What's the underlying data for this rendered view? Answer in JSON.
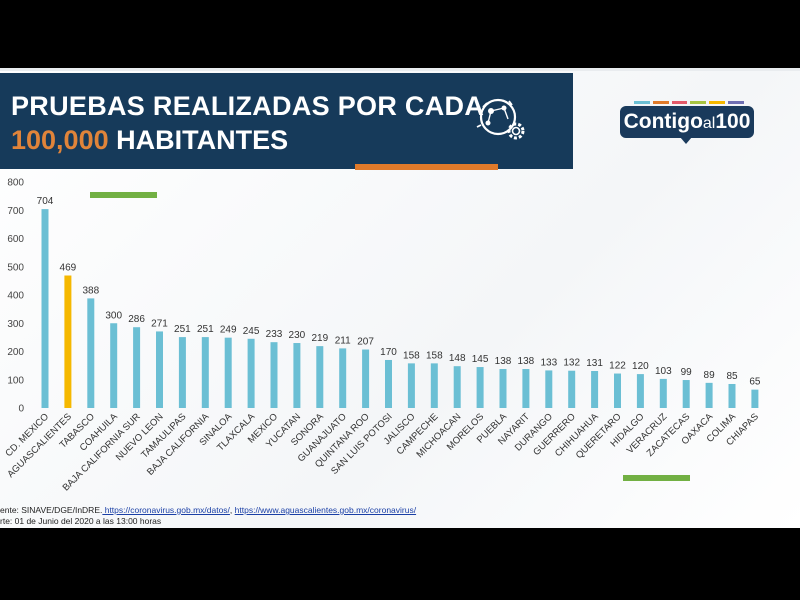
{
  "header": {
    "title_bold_1": "PRUEBAS",
    "title_rest_1": " REALIZADAS POR CADA",
    "title_accent_2": "100,000",
    "title_rest_2": " HABITANTES",
    "logo_part1": "Contigo",
    "logo_part2": "al",
    "logo_part3": "100"
  },
  "colors": {
    "header_bg": "#163a5a",
    "bar_default": "#6bbfd4",
    "bar_highlight": "#f5b800",
    "accent_orange": "#e07a2a",
    "accent_green": "#72b043",
    "logo_stripes": [
      "#6bbfd4",
      "#e07a2a",
      "#e45a6a",
      "#a8c441",
      "#f5b800",
      "#6f6fb3"
    ]
  },
  "icons": [
    "virus-network-icon",
    "gear-icon"
  ],
  "chart_data": {
    "type": "bar",
    "categories": [
      "CD. MEXICO",
      "AGUASCALIENTES",
      "TABASCO",
      "COAHUILA",
      "BAJA CALIFORNIA SUR",
      "NUEVO LEON",
      "TAMAULIPAS",
      "BAJA CALIFORNIA",
      "SINALOA",
      "TLAXCALA",
      "MEXICO",
      "YUCATAN",
      "SONORA",
      "GUANAJUATO",
      "QUINTANA ROO",
      "SAN LUIS POTOSI",
      "JALISCO",
      "CAMPECHE",
      "MICHOACAN",
      "MORELOS",
      "PUEBLA",
      "NAYARIT",
      "DURANGO",
      "GUERRERO",
      "CHIHUAHUA",
      "QUERETARO",
      "HIDALGO",
      "VERACRUZ",
      "ZACATECAS",
      "OAXACA",
      "COLIMA",
      "CHIAPAS"
    ],
    "values": [
      704,
      469,
      388,
      300,
      286,
      271,
      251,
      251,
      249,
      245,
      233,
      230,
      219,
      211,
      207,
      170,
      158,
      158,
      148,
      145,
      138,
      138,
      133,
      132,
      131,
      122,
      120,
      103,
      99,
      89,
      85,
      65
    ],
    "highlight": "AGUASCALIENTES",
    "ylim": [
      0,
      800
    ],
    "yticks": [
      0,
      100,
      200,
      300,
      400,
      500,
      600,
      700,
      800
    ],
    "grid": false
  },
  "footer": {
    "line1_prefix": "ente: SINAVE/DGE/InDRE.",
    "link1": " https://coronavirus.gob.mx/datos/",
    "sep": ", ",
    "link2": "https://www.aguascalientes.gob.mx/coronavirus/",
    "line2": "rte: 01 de Junio del 2020 a las 13:00 horas"
  }
}
